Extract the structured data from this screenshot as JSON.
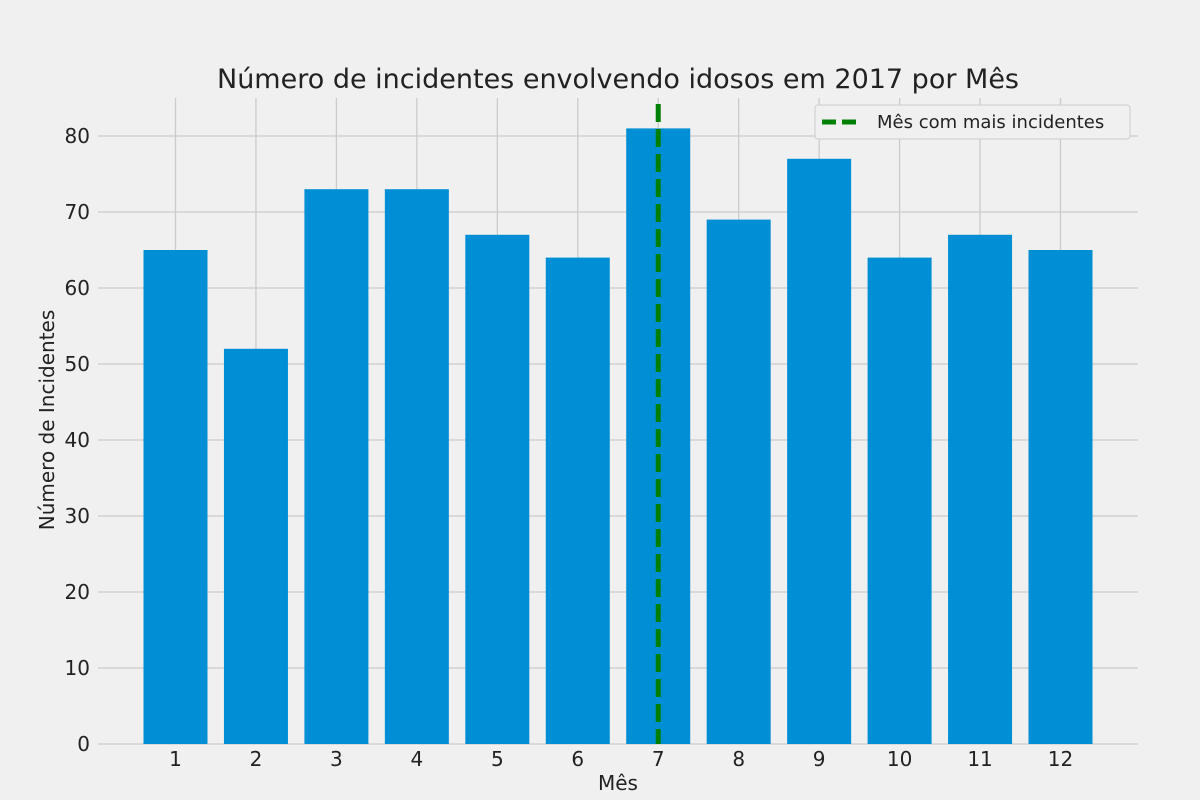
{
  "chart_data": {
    "type": "bar",
    "title": "Número de incidentes envolvendo idosos em 2017 por Mês",
    "xlabel": "Mês",
    "ylabel": "Número de Incidentes",
    "categories": [
      "1",
      "2",
      "3",
      "4",
      "5",
      "6",
      "7",
      "8",
      "9",
      "10",
      "11",
      "12"
    ],
    "values": [
      65,
      52,
      73,
      73,
      67,
      64,
      81,
      69,
      77,
      64,
      67,
      65
    ],
    "ylim": [
      0,
      85
    ],
    "yticks": [
      0,
      10,
      20,
      30,
      40,
      50,
      60,
      70,
      80
    ],
    "grid": true,
    "bar_color": "#008fd5",
    "reference_line": {
      "x": 7,
      "label": "Mês com mais incidentes",
      "color": "#008000",
      "style": "dashed"
    },
    "legend_position": "top-right"
  }
}
